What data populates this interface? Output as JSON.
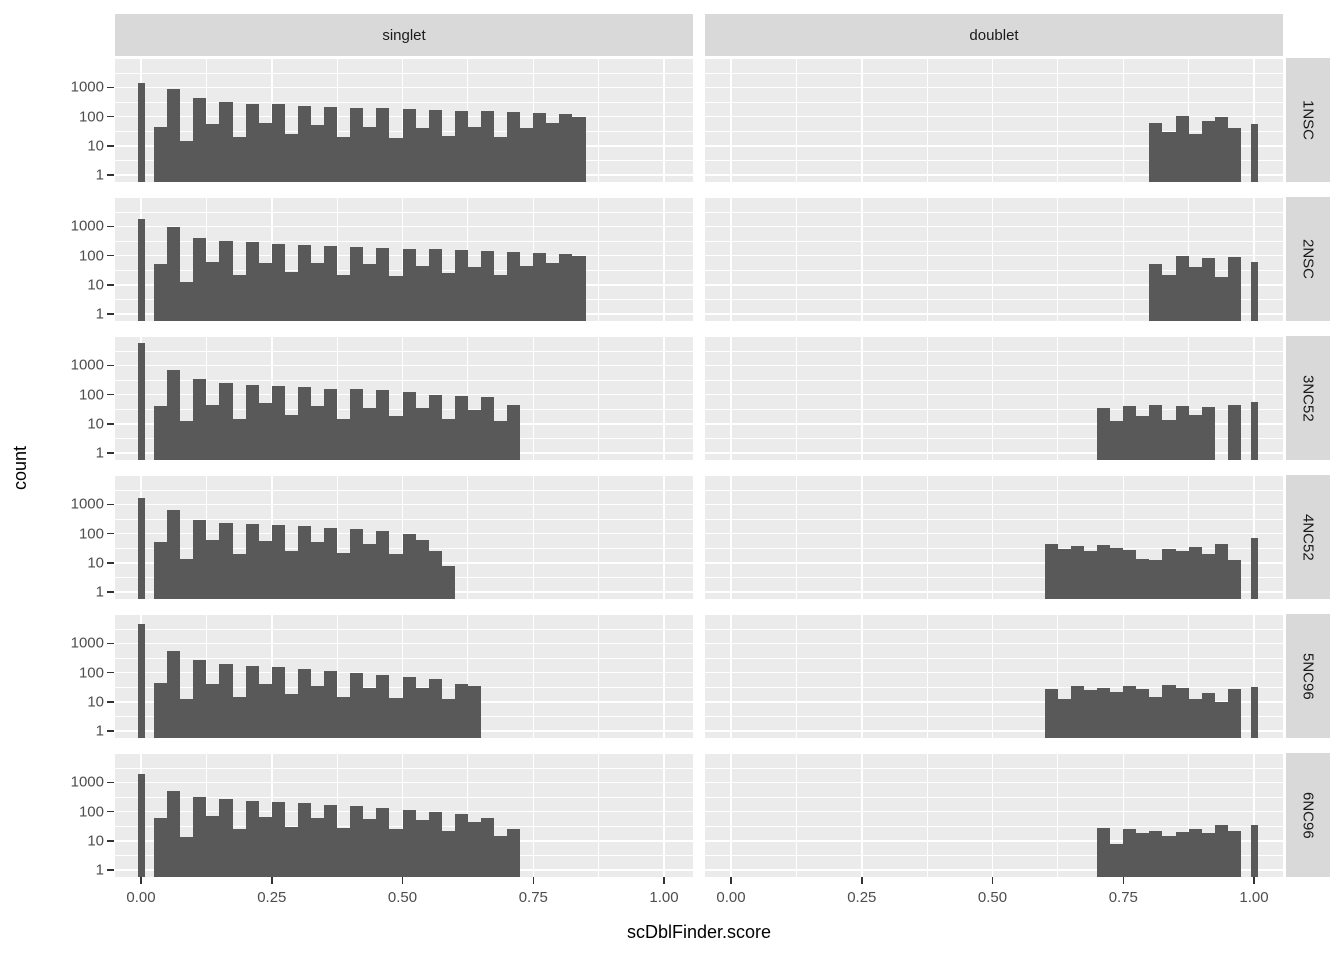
{
  "axis": {
    "x_title": "scDblFinder.score",
    "y_title": "count",
    "x_tick_labels": [
      "0.00",
      "0.25",
      "0.50",
      "0.75",
      "1.00"
    ],
    "x_tick_values": [
      0,
      0.25,
      0.5,
      0.75,
      1.0
    ],
    "y_tick_labels": [
      "1000",
      "100",
      "10",
      "1"
    ],
    "y_tick_values": [
      1000,
      100,
      10,
      1
    ]
  },
  "facets": {
    "columns": [
      "singlet",
      "doublet"
    ],
    "rows": [
      "1NSC",
      "2NSC",
      "3NC52",
      "4NC52",
      "5NC96",
      "6NC96"
    ]
  },
  "colors": {
    "bar": "#595959",
    "panel_bg": "#EBEBEB",
    "strip_bg": "#D9D9D9",
    "grid": "#FFFFFF",
    "tick_mark": "#333333",
    "axis_text": "#4D4D4D",
    "strip_text": "#1A1A1A",
    "title_text": "#000000"
  },
  "chart_data": {
    "type": "bar",
    "subtype": "faceted-histogram",
    "title": "",
    "xlabel": "scDblFinder.score",
    "ylabel": "count",
    "x_range": [
      -0.05,
      1.055
    ],
    "y_scale": "log10",
    "y_range_decades": [
      0,
      4
    ],
    "grid": "on",
    "x_major_breaks": [
      0,
      0.25,
      0.5,
      0.75,
      1.0
    ],
    "x_minor_breaks": [
      0.125,
      0.375,
      0.625,
      0.875
    ],
    "bin_width": 0.025,
    "panels": [
      {
        "row": "1NSC",
        "column": "singlet",
        "spikes": [
          {
            "x": 0.0,
            "count": 1400
          }
        ],
        "segments": [
          {
            "x0": 0.025,
            "counts": [
              45,
              900,
              15,
              420,
              55,
              310,
              20,
              280,
              60,
              260,
              25,
              240,
              50,
              220,
              20,
              200,
              45,
              190,
              18,
              180,
              40,
              170,
              22,
              160,
              45,
              150,
              20,
              140,
              40,
              130,
              60,
              120,
              100
            ]
          }
        ]
      },
      {
        "row": "1NSC",
        "column": "doublet",
        "spikes": [
          {
            "x": 1.0,
            "count": 55
          }
        ],
        "segments": [
          {
            "x0": 0.8,
            "counts": [
              60,
              30,
              105,
              25,
              70,
              95,
              40
            ]
          }
        ]
      },
      {
        "row": "2NSC",
        "column": "singlet",
        "spikes": [
          {
            "x": 0.0,
            "count": 1800
          }
        ],
        "segments": [
          {
            "x0": 0.025,
            "counts": [
              50,
              950,
              12,
              400,
              60,
              320,
              22,
              290,
              55,
              250,
              28,
              230,
              55,
              210,
              22,
              195,
              50,
              185,
              20,
              175,
              45,
              165,
              25,
              155,
              40,
              145,
              22,
              135,
              45,
              125,
              55,
              115,
              95
            ]
          }
        ]
      },
      {
        "row": "2NSC",
        "column": "doublet",
        "spikes": [
          {
            "x": 1.0,
            "count": 60
          }
        ],
        "segments": [
          {
            "x0": 0.8,
            "counts": [
              50,
              22,
              95,
              40,
              85,
              18,
              90
            ]
          }
        ]
      },
      {
        "row": "3NC52",
        "column": "singlet",
        "spikes": [
          {
            "x": 0.0,
            "count": 6000
          }
        ],
        "segments": [
          {
            "x0": 0.025,
            "counts": [
              40,
              700,
              12,
              350,
              45,
              250,
              15,
              220,
              50,
              200,
              20,
              180,
              40,
              160,
              15,
              150,
              35,
              140,
              18,
              120,
              35,
              100,
              15,
              90,
              30,
              80,
              12,
              45
            ]
          }
        ]
      },
      {
        "row": "3NC52",
        "column": "doublet",
        "spikes": [
          {
            "x": 1.0,
            "count": 55
          }
        ],
        "segments": [
          {
            "x0": 0.7,
            "counts": [
              35,
              12,
              40,
              18,
              45,
              14,
              42,
              20,
              38
            ]
          },
          {
            "x0": 0.95,
            "counts": [
              45
            ]
          }
        ]
      },
      {
        "row": "4NC52",
        "column": "singlet",
        "spikes": [
          {
            "x": 0.0,
            "count": 1600
          }
        ],
        "segments": [
          {
            "x0": 0.025,
            "counts": [
              50,
              650,
              14,
              300,
              60,
              240,
              20,
              220,
              55,
              200,
              25,
              180,
              50,
              160,
              22,
              140,
              45,
              120,
              20,
              100,
              60,
              25,
              8
            ]
          }
        ]
      },
      {
        "row": "4NC52",
        "column": "doublet",
        "spikes": [
          {
            "x": 1.0,
            "count": 70
          }
        ],
        "segments": [
          {
            "x0": 0.6,
            "counts": [
              45,
              30,
              38,
              25,
              42,
              32,
              28,
              14,
              12,
              30,
              25,
              35,
              20,
              45,
              12
            ]
          }
        ]
      },
      {
        "row": "5NC96",
        "column": "singlet",
        "spikes": [
          {
            "x": 0.0,
            "count": 4500
          }
        ],
        "segments": [
          {
            "x0": 0.025,
            "counts": [
              45,
              550,
              12,
              280,
              40,
              200,
              15,
              170,
              40,
              150,
              18,
              130,
              35,
              110,
              15,
              95,
              30,
              85,
              14,
              70,
              30,
              60,
              12,
              40,
              35
            ]
          }
        ]
      },
      {
        "row": "5NC96",
        "column": "doublet",
        "spikes": [
          {
            "x": 1.0,
            "count": 32
          }
        ],
        "segments": [
          {
            "x0": 0.6,
            "counts": [
              28,
              12,
              35,
              25,
              30,
              22,
              35,
              28,
              15,
              38,
              30,
              12,
              20
            ]
          },
          {
            "x0": 0.925,
            "counts": [
              10,
              28
            ]
          }
        ]
      },
      {
        "row": "6NC96",
        "column": "singlet",
        "spikes": [
          {
            "x": 0.0,
            "count": 2000
          }
        ],
        "segments": [
          {
            "x0": 0.025,
            "counts": [
              60,
              500,
              14,
              320,
              70,
              260,
              25,
              230,
              65,
              210,
              30,
              190,
              60,
              170,
              28,
              150,
              55,
              130,
              25,
              110,
              50,
              95,
              22,
              80,
              45,
              60,
              15,
              25
            ]
          }
        ]
      },
      {
        "row": "6NC96",
        "column": "doublet",
        "spikes": [
          {
            "x": 1.0,
            "count": 35
          }
        ],
        "segments": [
          {
            "x0": 0.7,
            "counts": [
              28,
              8,
              25,
              18,
              22,
              15,
              20,
              25,
              18,
              35,
              22
            ]
          }
        ]
      }
    ]
  }
}
